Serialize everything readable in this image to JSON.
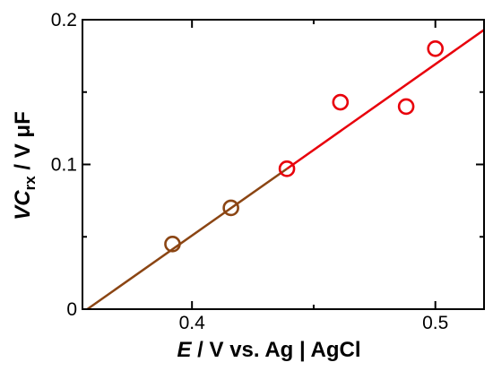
{
  "chart_data": {
    "type": "scatter",
    "title": "",
    "xlabel": {
      "italic": "E",
      "rest": " / V vs. Ag | AgCl"
    },
    "ylabel": {
      "italic": "VC",
      "subscript": "rx",
      "rest": " / V μF"
    },
    "xlim": [
      0.355,
      0.52
    ],
    "ylim": [
      0,
      0.2
    ],
    "x_ticks": [
      {
        "value": 0.4,
        "label": "0.4"
      },
      {
        "value": 0.5,
        "label": "0.5"
      }
    ],
    "y_ticks": [
      {
        "value": 0,
        "label": "0"
      },
      {
        "value": 0.1,
        "label": "0.1"
      },
      {
        "value": 0.2,
        "label": "0.2"
      }
    ],
    "x_minor_ticks": [
      0.45
    ],
    "y_minor_ticks": [
      0.05,
      0.15
    ],
    "grid": false,
    "series": [
      {
        "points": [
          {
            "x": 0.392,
            "y": 0.045,
            "color": "#8b4513"
          },
          {
            "x": 0.416,
            "y": 0.07,
            "color": "#8b4513"
          },
          {
            "x": 0.439,
            "y": 0.097,
            "color": "#e8000b"
          },
          {
            "x": 0.461,
            "y": 0.143,
            "color": "#e8000b"
          },
          {
            "x": 0.488,
            "y": 0.14,
            "color": "#e8000b"
          },
          {
            "x": 0.5,
            "y": 0.18,
            "color": "#e8000b"
          }
        ]
      }
    ],
    "fit_lines": [
      {
        "x": [
          0.357,
          0.439
        ],
        "y": [
          0.0,
          0.097
        ],
        "color": "#8b4513"
      },
      {
        "x": [
          0.439,
          0.52
        ],
        "y": [
          0.097,
          0.193
        ],
        "color": "#e8000b"
      }
    ],
    "colors": {
      "brown": "#8b4513",
      "red": "#e8000b",
      "axes": "#000000"
    }
  }
}
